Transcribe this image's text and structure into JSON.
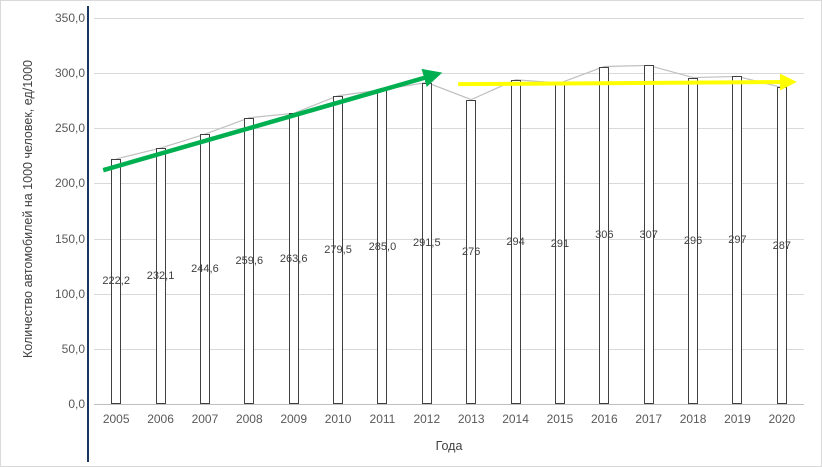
{
  "chart_data": {
    "type": "bar",
    "title": "",
    "xlabel": "Года",
    "ylabel": "Количество автомобилей на 1000 человек, ед/1000",
    "categories": [
      "2005",
      "2006",
      "2007",
      "2008",
      "2009",
      "2010",
      "2011",
      "2012",
      "2013",
      "2014",
      "2015",
      "2016",
      "2017",
      "2018",
      "2019",
      "2020"
    ],
    "values": [
      222.2,
      232.1,
      244.6,
      259.6,
      263.6,
      279.5,
      285.0,
      291.5,
      276,
      294,
      291,
      306,
      307,
      296,
      297,
      287
    ],
    "value_labels": [
      "222,2",
      "232,1",
      "244,6",
      "259,6",
      "263,6",
      "279,5",
      "285,0",
      "291,5",
      "276",
      "294",
      "291",
      "306",
      "307",
      "296",
      "297",
      "287"
    ],
    "ylim": [
      0,
      350
    ],
    "y_tick_labels": [
      "0,0",
      "50,0",
      "100,0",
      "150,0",
      "200,0",
      "250,0",
      "300,0",
      "350,0"
    ],
    "grid": true,
    "legend": false,
    "bar_fill": "#ffffff",
    "bar_border": "#404040",
    "series_line_color": "#bfbfbf",
    "annotations": [
      {
        "name": "growth-trend-arrow",
        "type": "arrow",
        "color": "#00b050",
        "from_category": "2005",
        "from_value": 212,
        "to_category": "2012",
        "to_value": 299
      },
      {
        "name": "plateau-trend-arrow",
        "type": "arrow",
        "color": "#ffff00",
        "from_category": "2013",
        "from_value": 290,
        "to_category": "2020",
        "to_value": 292
      }
    ]
  }
}
